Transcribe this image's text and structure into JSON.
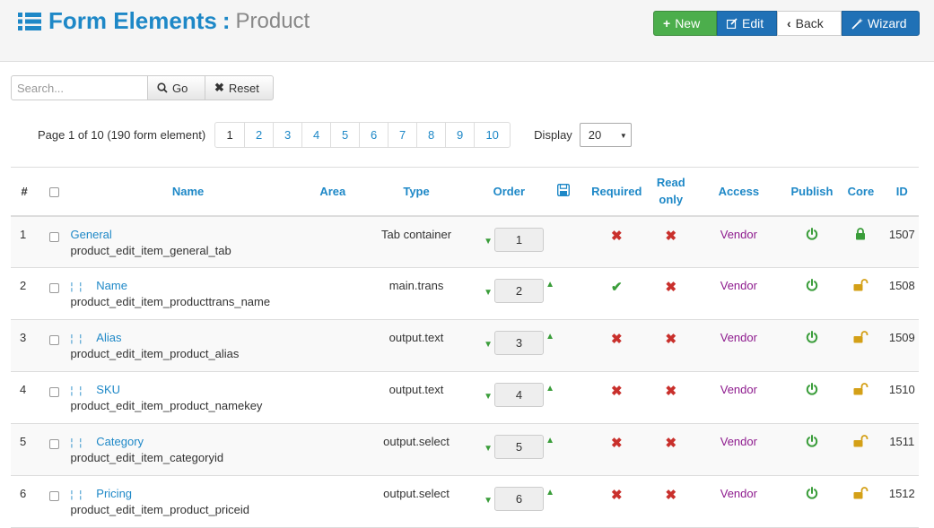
{
  "header": {
    "title": "Form Elements",
    "separator": ":",
    "subtitle": "Product"
  },
  "toolbar": {
    "new_label": "New",
    "edit_label": "Edit",
    "back_label": "Back",
    "wizard_label": "Wizard"
  },
  "search": {
    "placeholder": "Search...",
    "value": "",
    "go_label": "Go",
    "reset_label": "Reset"
  },
  "pagination": {
    "summary": "Page 1 of 10 (190 form element)",
    "pages": [
      "1",
      "2",
      "3",
      "4",
      "5",
      "6",
      "7",
      "8",
      "9",
      "10"
    ],
    "current": "1",
    "display_label": "Display",
    "display_value": "20"
  },
  "table": {
    "headers": {
      "num": "#",
      "name": "Name",
      "area": "Area",
      "type": "Type",
      "order": "Order",
      "required": "Required",
      "readonly": "Read only",
      "access": "Access",
      "publish": "Publish",
      "core": "Core",
      "id": "ID"
    },
    "rows": [
      {
        "num": "1",
        "name": "General",
        "key": "product_edit_item_general_tab",
        "type": "Tab container",
        "order": "1",
        "required": false,
        "readonly": false,
        "access": "Vendor",
        "core_locked": true,
        "id": "1507",
        "indent": false
      },
      {
        "num": "2",
        "name": "Name",
        "key": "product_edit_item_producttrans_name",
        "type": "main.trans",
        "order": "2",
        "required": true,
        "readonly": false,
        "access": "Vendor",
        "core_locked": false,
        "id": "1508",
        "indent": true
      },
      {
        "num": "3",
        "name": "Alias",
        "key": "product_edit_item_product_alias",
        "type": "output.text",
        "order": "3",
        "required": false,
        "readonly": false,
        "access": "Vendor",
        "core_locked": false,
        "id": "1509",
        "indent": true
      },
      {
        "num": "4",
        "name": "SKU",
        "key": "product_edit_item_product_namekey",
        "type": "output.text",
        "order": "4",
        "required": false,
        "readonly": false,
        "access": "Vendor",
        "core_locked": false,
        "id": "1510",
        "indent": true
      },
      {
        "num": "5",
        "name": "Category",
        "key": "product_edit_item_categoryid",
        "type": "output.select",
        "order": "5",
        "required": false,
        "readonly": false,
        "access": "Vendor",
        "core_locked": false,
        "id": "1511",
        "indent": true
      },
      {
        "num": "6",
        "name": "Pricing",
        "key": "product_edit_item_product_priceid",
        "type": "output.select",
        "order": "6",
        "required": false,
        "readonly": false,
        "access": "Vendor",
        "core_locked": false,
        "id": "1512",
        "indent": true
      }
    ]
  },
  "colors": {
    "link": "#1e88c7",
    "success": "#4cae4c",
    "primary": "#2071b6",
    "danger": "#c9302c",
    "access": "#8e1b8e",
    "lock_closed": "#3a9d3a",
    "lock_open": "#d4a017"
  }
}
